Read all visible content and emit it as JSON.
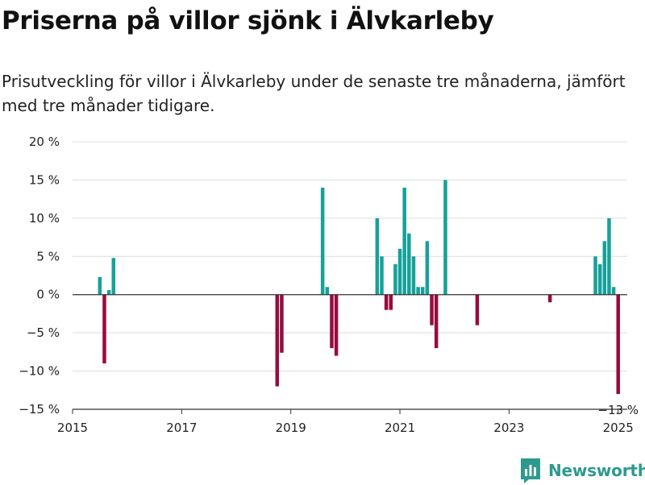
{
  "header": {
    "title": "Priserna på villor sjönk i Älvkarleby",
    "subtitle": "Prisutveckling för villor i Älvkarleby under de senaste tre månaderna, jämfört med tre månader tidigare."
  },
  "brand": {
    "name": "Newsworthy",
    "icon": "newsworthy-logo-icon",
    "color": "#2e9a8e"
  },
  "colors": {
    "positive": "#16a19a",
    "negative": "#960c3e"
  },
  "chart_data": {
    "type": "bar",
    "x_ticks": [
      "2015",
      "2017",
      "2019",
      "2021",
      "2023",
      "2025"
    ],
    "y_ticks": [
      "20 %",
      "15 %",
      "10 %",
      "5 %",
      "0 %",
      "−5 %",
      "−10 %",
      "−15 %"
    ],
    "xlim": [
      "2015-01",
      "2025-03"
    ],
    "ylim": [
      -15,
      20
    ],
    "grid": true,
    "annotations": [
      {
        "text": "−13 %",
        "x": "2025-01",
        "y": -13
      }
    ],
    "series": [
      {
        "values": [
          {
            "x": "2015-07",
            "y": 2.3
          },
          {
            "x": "2015-08",
            "y": -9
          },
          {
            "x": "2015-09",
            "y": 0.6
          },
          {
            "x": "2015-10",
            "y": 4.8
          },
          {
            "x": "2018-10",
            "y": -12
          },
          {
            "x": "2018-11",
            "y": -7.6
          },
          {
            "x": "2019-08",
            "y": 14
          },
          {
            "x": "2019-09",
            "y": 1
          },
          {
            "x": "2019-10",
            "y": -7
          },
          {
            "x": "2019-11",
            "y": -8
          },
          {
            "x": "2020-08",
            "y": 10
          },
          {
            "x": "2020-09",
            "y": 5
          },
          {
            "x": "2020-10",
            "y": -2
          },
          {
            "x": "2020-11",
            "y": -2
          },
          {
            "x": "2020-12",
            "y": 4
          },
          {
            "x": "2021-01",
            "y": 6
          },
          {
            "x": "2021-02",
            "y": 14
          },
          {
            "x": "2021-03",
            "y": 8
          },
          {
            "x": "2021-04",
            "y": 5
          },
          {
            "x": "2021-05",
            "y": 1
          },
          {
            "x": "2021-06",
            "y": 1
          },
          {
            "x": "2021-07",
            "y": 7
          },
          {
            "x": "2021-08",
            "y": -4
          },
          {
            "x": "2021-09",
            "y": -7
          },
          {
            "x": "2021-11",
            "y": 15
          },
          {
            "x": "2022-06",
            "y": -4
          },
          {
            "x": "2023-10",
            "y": -1
          },
          {
            "x": "2024-08",
            "y": 5
          },
          {
            "x": "2024-09",
            "y": 4
          },
          {
            "x": "2024-10",
            "y": 7
          },
          {
            "x": "2024-11",
            "y": 10
          },
          {
            "x": "2024-12",
            "y": 1
          },
          {
            "x": "2025-01",
            "y": -13
          }
        ]
      }
    ]
  }
}
